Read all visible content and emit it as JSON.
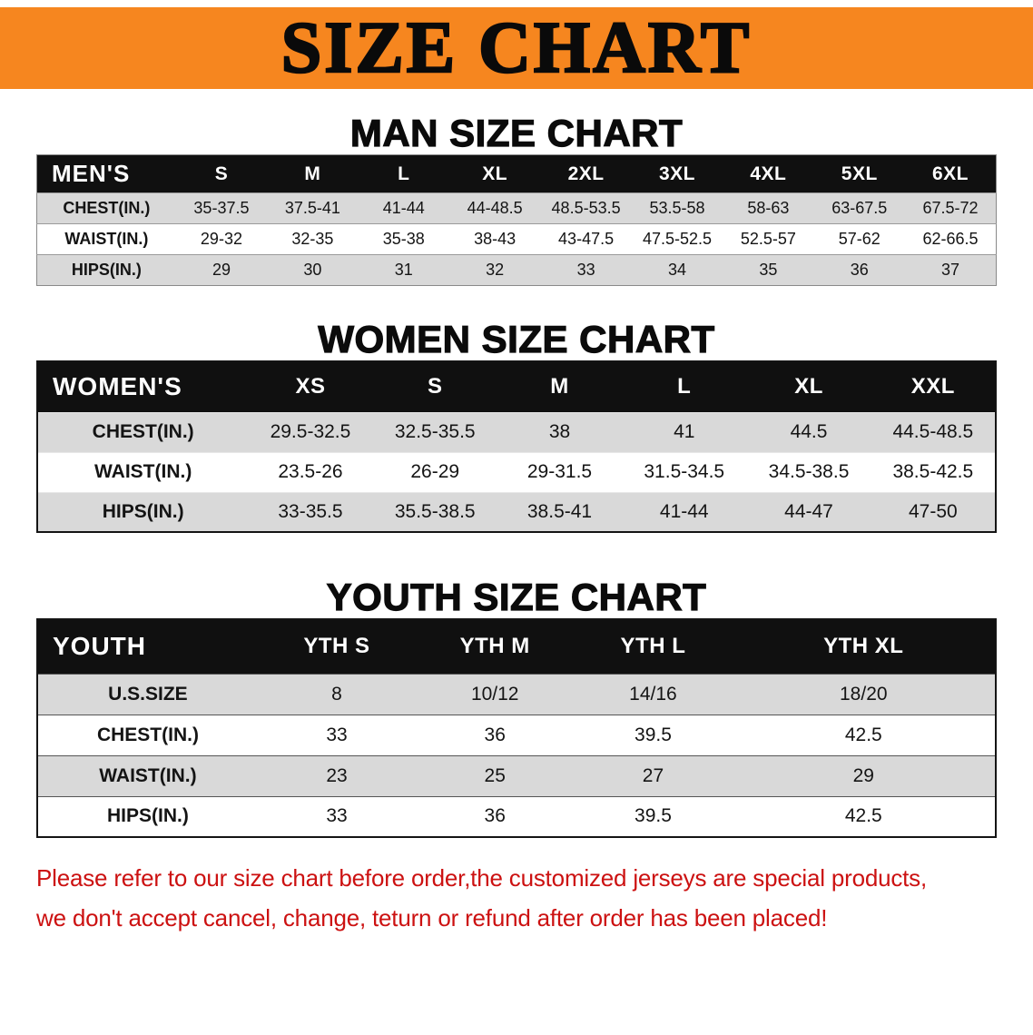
{
  "banner": {
    "title": "SIZE CHART"
  },
  "sections": [
    {
      "id": "men",
      "heading": "MAN SIZE CHART",
      "table": {
        "title": "MEN'S",
        "columns": [
          "S",
          "M",
          "L",
          "XL",
          "2XL",
          "3XL",
          "4XL",
          "5XL",
          "6XL"
        ],
        "rows": [
          {
            "label": "CHEST(IN.)",
            "values": [
              "35-37.5",
              "37.5-41",
              "41-44",
              "44-48.5",
              "48.5-53.5",
              "53.5-58",
              "58-63",
              "63-67.5",
              "67.5-72"
            ]
          },
          {
            "label": "WAIST(IN.)",
            "values": [
              "29-32",
              "32-35",
              "35-38",
              "38-43",
              "43-47.5",
              "47.5-52.5",
              "52.5-57",
              "57-62",
              "62-66.5"
            ]
          },
          {
            "label": "HIPS(IN.)",
            "values": [
              "29",
              "30",
              "31",
              "32",
              "33",
              "34",
              "35",
              "36",
              "37"
            ]
          }
        ]
      }
    },
    {
      "id": "women",
      "heading": "WOMEN SIZE CHART",
      "table": {
        "title": "WOMEN'S",
        "columns": [
          "XS",
          "S",
          "M",
          "L",
          "XL",
          "XXL"
        ],
        "rows": [
          {
            "label": "CHEST(IN.)",
            "values": [
              "29.5-32.5",
              "32.5-35.5",
              "38",
              "41",
              "44.5",
              "44.5-48.5"
            ]
          },
          {
            "label": "WAIST(IN.)",
            "values": [
              "23.5-26",
              "26-29",
              "29-31.5",
              "31.5-34.5",
              "34.5-38.5",
              "38.5-42.5"
            ]
          },
          {
            "label": "HIPS(IN.)",
            "values": [
              "33-35.5",
              "35.5-38.5",
              "38.5-41",
              "41-44",
              "44-47",
              "47-50"
            ]
          }
        ]
      }
    },
    {
      "id": "youth",
      "heading": "YOUTH SIZE CHART",
      "table": {
        "title": "YOUTH",
        "columns": [
          "YTH S",
          "YTH M",
          "YTH L",
          "YTH XL"
        ],
        "rows": [
          {
            "label": "U.S.SIZE",
            "values": [
              "8",
              "10/12",
              "14/16",
              "18/20"
            ]
          },
          {
            "label": "CHEST(IN.)",
            "values": [
              "33",
              "36",
              "39.5",
              "42.5"
            ]
          },
          {
            "label": "WAIST(IN.)",
            "values": [
              "23",
              "25",
              "27",
              "29"
            ]
          },
          {
            "label": "HIPS(IN.)",
            "values": [
              "33",
              "36",
              "39.5",
              "42.5"
            ]
          }
        ]
      }
    }
  ],
  "footer": {
    "lines": [
      "Please refer to our size chart before order,the customized jerseys are special products,",
      "we don't accept cancel, change, teturn or refund after order has been placed!"
    ]
  },
  "colors": {
    "banner_orange": "#f6861f",
    "header_black": "#101010",
    "row_gray": "#d9d9d9",
    "footer_red": "#cc1111"
  }
}
